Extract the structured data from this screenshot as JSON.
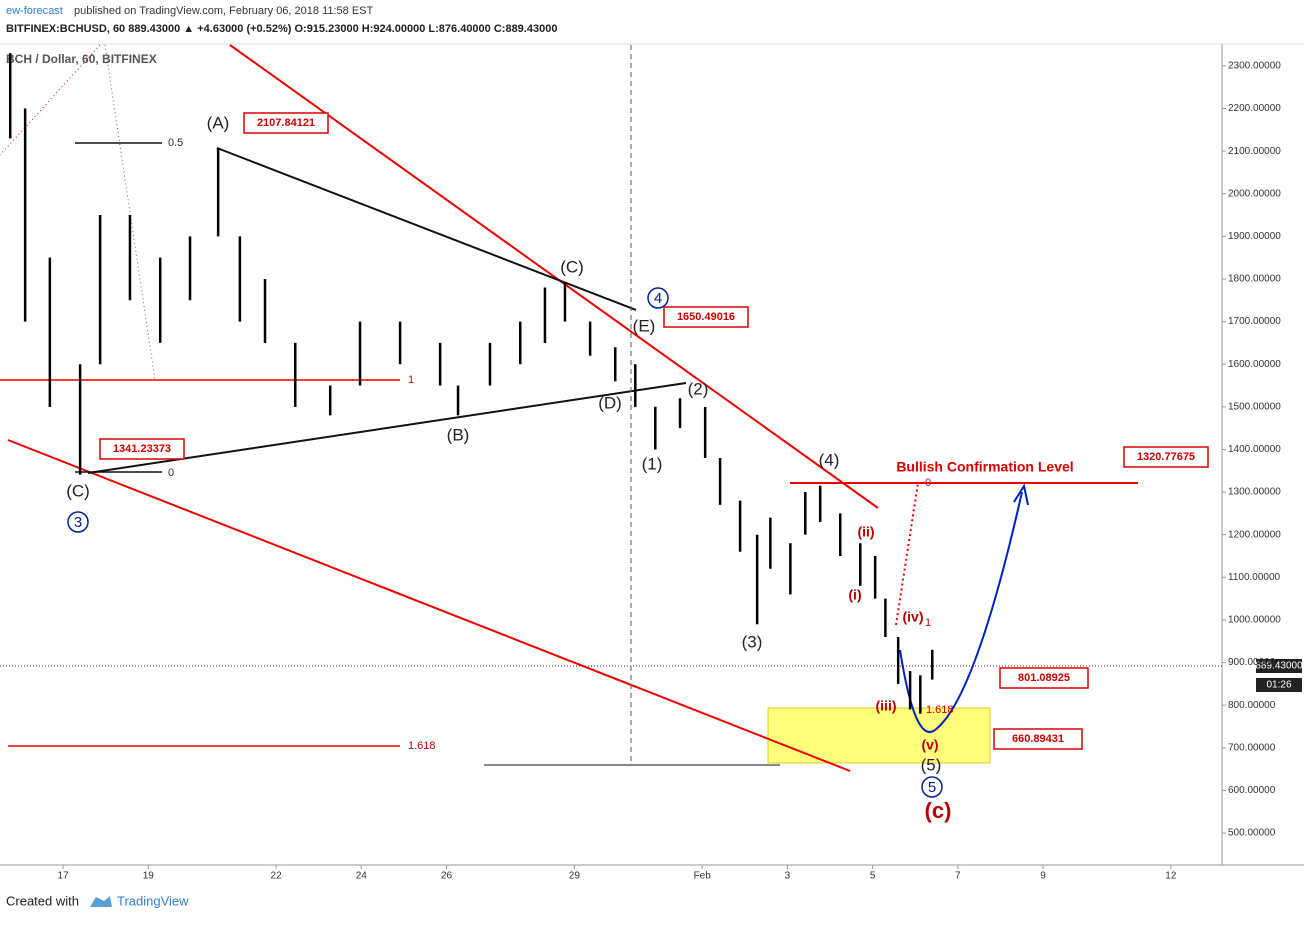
{
  "header": {
    "author": "ew-forecast",
    "published": " published on TradingView.com, February 06, 2018 11:58 EST",
    "quote": "BITFINEX:BCHUSD, 60  889.43000 ▲ +4.63000 (+0.52%) O:915.23000 H:924.00000 L:876.40000 C:889.43000"
  },
  "footer": {
    "created": "Created with",
    "brand": "TradingView"
  },
  "chart_data": {
    "type": "ohlc",
    "legend": "BCH / Dollar, 60, BITFINEX",
    "color": "#000000",
    "x": [
      15.76,
      16.11,
      16.69,
      17.4,
      17.87,
      18.57,
      19.28,
      19.98,
      20.64,
      21.15,
      21.74,
      22.45,
      23.27,
      23.97,
      24.91,
      25.85,
      26.27,
      27.02,
      27.73,
      28.31,
      28.78,
      29.37,
      29.96,
      30.43,
      30.9,
      31.48,
      32.07,
      32.42,
      32.89,
      33.29,
      33.6,
      34.07,
      34.42,
      34.77,
      35.24,
      35.71,
      36.06,
      36.3,
      36.6,
      36.88,
      37.12,
      37.4
    ],
    "high": [
      2330,
      2200,
      1850,
      1600,
      1950,
      1950,
      1850,
      1900,
      2108,
      1900,
      1800,
      1650,
      1550,
      1700,
      1700,
      1650,
      1550,
      1650,
      1700,
      1780,
      1790,
      1700,
      1640,
      1600,
      1500,
      1520,
      1500,
      1380,
      1280,
      1200,
      1240,
      1180,
      1300,
      1315,
      1250,
      1180,
      1150,
      1050,
      960,
      880,
      870,
      930
    ],
    "low": [
      2130,
      1700,
      1500,
      1341,
      1600,
      1750,
      1650,
      1750,
      1900,
      1700,
      1650,
      1500,
      1480,
      1550,
      1600,
      1550,
      1480,
      1550,
      1600,
      1650,
      1700,
      1620,
      1560,
      1500,
      1400,
      1450,
      1380,
      1270,
      1160,
      990,
      1120,
      1060,
      1200,
      1230,
      1150,
      1080,
      1050,
      960,
      850,
      790,
      780,
      860
    ],
    "xlim": [
      15.52,
      44.2
    ],
    "xticks": [
      17,
      19,
      22,
      24,
      26,
      29,
      {
        "value": 32,
        "label": "Feb"
      },
      {
        "value": 34,
        "label": "3"
      },
      {
        "value": 36,
        "label": "5"
      },
      {
        "value": 38,
        "label": "7"
      },
      {
        "value": 40,
        "label": "9"
      },
      {
        "value": 43,
        "label": "12"
      }
    ],
    "ylim": [
      425,
      2349
    ],
    "yticks": [
      {
        "value": 500,
        "label": "500.00000"
      },
      {
        "value": 600,
        "label": "600.00000"
      },
      {
        "value": 700,
        "label": "700.00000"
      },
      {
        "value": 800,
        "label": "800.00000"
      },
      {
        "value": 900,
        "label": "900.00000"
      },
      {
        "value": 1000,
        "label": "1000.00000"
      },
      {
        "value": 1100,
        "label": "1100.00000"
      },
      {
        "value": 1200,
        "label": "1200.00000"
      },
      {
        "value": 1300,
        "label": "1300.00000"
      },
      {
        "value": 1400,
        "label": "1400.00000"
      },
      {
        "value": 1500,
        "label": "1500.00000"
      },
      {
        "value": 1600,
        "label": "1600.00000"
      },
      {
        "value": 1700,
        "label": "1700.00000"
      },
      {
        "value": 1800,
        "label": "1800.00000"
      },
      {
        "value": 1900,
        "label": "1900.00000"
      },
      {
        "value": 2000,
        "label": "2000.00000"
      },
      {
        "value": 2100,
        "label": "2100.00000"
      },
      {
        "value": 2200,
        "label": "2200.00000"
      },
      {
        "value": 2300,
        "label": "2300.00000"
      }
    ],
    "last_price": {
      "value": 889.43,
      "label": "889.43000",
      "countdown": "01:26"
    },
    "annotations": {
      "A": "(A)",
      "B": "(B)",
      "C_left": "(C)",
      "C_mid": "(C)",
      "D": "(D)",
      "E": "(E)",
      "w1": "(1)",
      "w2": "(2)",
      "w3": "(3)",
      "w4": "(4)",
      "w5": "(5)",
      "c3": "3",
      "c4": "4",
      "c5": "5",
      "i": "(i)",
      "ii": "(ii)",
      "iii": "(iii)",
      "iv": "(iv)",
      "v": "(v)",
      "c": "(c)",
      "fib_05": "0.5",
      "fib_1": "1",
      "fib_0": "0",
      "fib_1618": "1.618",
      "fib_0b": "0",
      "fib_1b": "1",
      "fib_1618b": "1.618",
      "p1": "2107.84121",
      "p2": "1650.49016",
      "p3": "1341.23373",
      "p4": "1320.77675",
      "p5": "801.08925",
      "p6": "660.89431",
      "bullish": "Bullish Confirmation Level"
    }
  }
}
